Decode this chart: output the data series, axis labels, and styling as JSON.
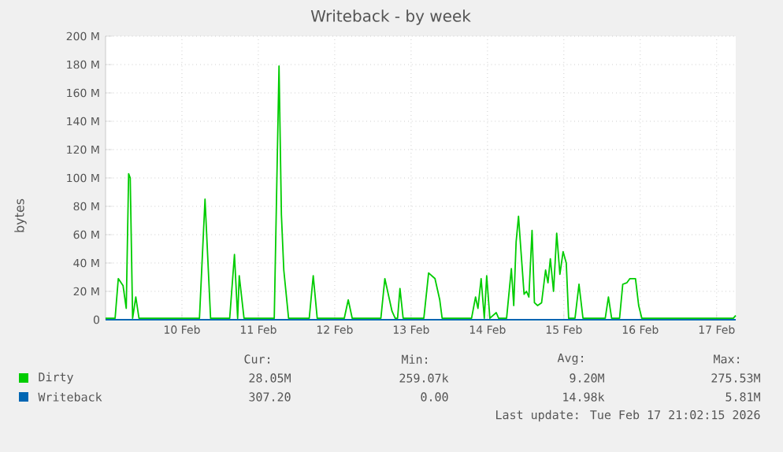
{
  "chart_data": {
    "type": "line",
    "title": "Writeback - by week",
    "ylabel": "bytes",
    "xlim": [
      "2026-02-09T12:00",
      "2026-02-17T18:00"
    ],
    "xticks": [
      {
        "value": "2026-02-10T12:00",
        "label": "10 Feb"
      },
      {
        "value": "2026-02-11T12:00",
        "label": "11 Feb"
      },
      {
        "value": "2026-02-12T12:00",
        "label": "12 Feb"
      },
      {
        "value": "2026-02-13T12:00",
        "label": "13 Feb"
      },
      {
        "value": "2026-02-14T12:00",
        "label": "14 Feb"
      },
      {
        "value": "2026-02-15T12:00",
        "label": "15 Feb"
      },
      {
        "value": "2026-02-16T12:00",
        "label": "16 Feb"
      },
      {
        "value": "2026-02-17T12:00",
        "label": "17 Feb"
      }
    ],
    "ylim": [
      0,
      200
    ],
    "yticks": [
      0,
      {
        "value": 20,
        "label": "20 M"
      },
      {
        "value": 40,
        "label": "40 M"
      },
      {
        "value": 60,
        "label": "60 M"
      },
      {
        "value": 80,
        "label": "80 M"
      },
      {
        "value": 100,
        "label": "100 M"
      },
      {
        "value": 120,
        "label": "120 M"
      },
      {
        "value": 140,
        "label": "140 M"
      },
      {
        "value": 160,
        "label": "160 M"
      },
      {
        "value": 180,
        "label": "180 M"
      },
      {
        "value": 200,
        "label": "200 M"
      }
    ],
    "grid": true,
    "legend": "bottom left",
    "marker": "none",
    "line_style": "solid",
    "series": [
      {
        "name": "Dirty",
        "color": "#00cc00",
        "x": [
          "2026-02-09T12:00",
          "2026-02-09T15:00",
          "2026-02-09T16:00",
          "2026-02-09T17:30",
          "2026-02-09T18:30",
          "2026-02-09T19:15",
          "2026-02-09T19:45",
          "2026-02-09T20:30",
          "2026-02-09T21:30",
          "2026-02-09T22:30",
          "2026-02-10T17:30",
          "2026-02-10T19:15",
          "2026-02-10T21:00",
          "2026-02-11T03:00",
          "2026-02-11T04:30",
          "2026-02-11T05:30",
          "2026-02-11T06:00",
          "2026-02-11T07:30",
          "2026-02-11T17:00",
          "2026-02-11T18:30",
          "2026-02-11T19:15",
          "2026-02-11T20:00",
          "2026-02-11T21:30",
          "2026-02-12T04:00",
          "2026-02-12T05:15",
          "2026-02-12T06:30",
          "2026-02-12T15:00",
          "2026-02-12T16:15",
          "2026-02-12T17:30",
          "2026-02-13T02:30",
          "2026-02-13T03:45",
          "2026-02-13T06:00",
          "2026-02-13T07:00",
          "2026-02-13T07:45",
          "2026-02-13T08:30",
          "2026-02-13T09:30",
          "2026-02-13T16:00",
          "2026-02-13T17:30",
          "2026-02-13T19:30",
          "2026-02-13T21:00",
          "2026-02-13T21:45",
          "2026-02-14T07:00",
          "2026-02-14T08:15",
          "2026-02-14T09:00",
          "2026-02-14T10:00",
          "2026-02-14T11:00",
          "2026-02-14T11:45",
          "2026-02-14T12:45",
          "2026-02-14T14:45",
          "2026-02-14T15:30",
          "2026-02-14T18:00",
          "2026-02-14T19:30",
          "2026-02-14T20:15",
          "2026-02-14T21:00",
          "2026-02-14T21:45",
          "2026-02-14T22:30",
          "2026-02-14T23:30",
          "2026-02-15T00:15",
          "2026-02-15T01:00",
          "2026-02-15T02:00",
          "2026-02-15T02:45",
          "2026-02-15T03:45",
          "2026-02-15T05:00",
          "2026-02-15T06:15",
          "2026-02-15T07:00",
          "2026-02-15T07:45",
          "2026-02-15T08:45",
          "2026-02-15T09:45",
          "2026-02-15T10:45",
          "2026-02-15T11:45",
          "2026-02-15T12:45",
          "2026-02-15T13:30",
          "2026-02-15T15:30",
          "2026-02-15T16:45",
          "2026-02-15T18:00",
          "2026-02-16T01:00",
          "2026-02-16T02:00",
          "2026-02-16T03:00",
          "2026-02-16T05:30",
          "2026-02-16T06:30",
          "2026-02-16T07:45",
          "2026-02-16T08:45",
          "2026-02-16T10:30",
          "2026-02-16T11:30",
          "2026-02-16T12:30",
          "2026-02-17T17:15",
          "2026-02-17T18:00"
        ],
        "values": [
          1,
          1,
          29,
          24,
          8,
          103,
          100,
          1,
          16,
          1,
          1,
          85,
          1,
          1,
          46,
          1,
          31,
          1,
          1,
          179,
          74,
          35,
          1,
          1,
          31,
          1,
          1,
          14,
          1,
          1,
          29,
          6,
          1,
          1,
          22,
          1,
          1,
          33,
          29,
          14,
          1,
          1,
          16,
          8,
          29,
          1,
          31,
          1,
          5,
          1,
          1,
          36,
          10,
          55,
          73,
          49,
          18,
          20,
          16,
          63,
          12,
          10,
          12,
          35,
          26,
          43,
          20,
          61,
          32,
          48,
          40,
          1,
          1,
          25,
          1,
          1,
          16,
          1,
          1,
          25,
          26,
          29,
          29,
          10,
          1,
          1,
          3
        ]
      },
      {
        "name": "Writeback",
        "color": "#0066b3",
        "x": [
          "2026-02-09T12:00",
          "2026-02-17T18:00"
        ],
        "values": [
          0,
          0
        ]
      }
    ],
    "annotations": [
      "Cur:",
      "Min:",
      "Avg:",
      "Max:",
      "28.05M",
      "259.07k",
      "9.20M",
      "275.53M",
      "307.20",
      "0.00",
      "14.98k",
      "5.81M",
      "Last update: Tue Feb 17 21:02:15 2026"
    ]
  }
}
